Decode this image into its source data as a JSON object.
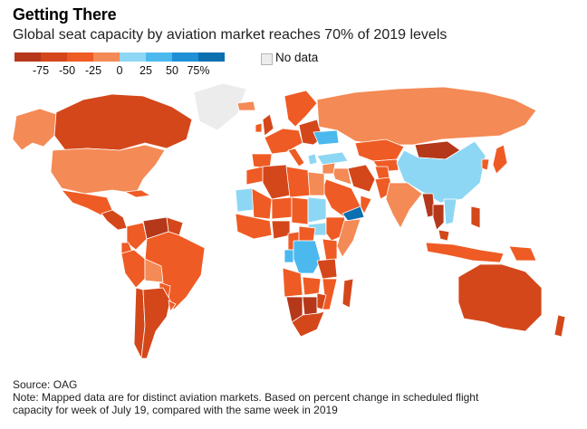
{
  "title": "Getting There",
  "subtitle": "Global seat capacity by aviation market reaches 70% of 2019 levels",
  "legend": {
    "colors": [
      "#b5381a",
      "#d4471b",
      "#ef5b24",
      "#f48a55",
      "#8ed7f4",
      "#4bb8ee",
      "#1f8fd6",
      "#0b6fb0"
    ],
    "ticks": [
      "-75",
      "-50",
      "-25",
      "0",
      "25",
      "50",
      "75%"
    ],
    "no_data_label": "No data",
    "no_data_color": "#ececec"
  },
  "map": {
    "ocean_color": "#ffffff",
    "border_color": "#ffffff",
    "regions": [
      {
        "name": "Alaska",
        "color": "#f48a55"
      },
      {
        "name": "Canada",
        "color": "#d4471b"
      },
      {
        "name": "Greenland",
        "color": "#ececec"
      },
      {
        "name": "United States",
        "color": "#f48a55"
      },
      {
        "name": "Mexico",
        "color": "#ef5b24"
      },
      {
        "name": "Central America",
        "color": "#d4471b"
      },
      {
        "name": "Cuba",
        "color": "#ef5b24"
      },
      {
        "name": "Colombia",
        "color": "#ef5b24"
      },
      {
        "name": "Venezuela",
        "color": "#b5381a"
      },
      {
        "name": "Guianas",
        "color": "#d4471b"
      },
      {
        "name": "Ecuador",
        "color": "#ef5b24"
      },
      {
        "name": "Peru",
        "color": "#ef5b24"
      },
      {
        "name": "Brazil",
        "color": "#ef5b24"
      },
      {
        "name": "Bolivia",
        "color": "#f48a55"
      },
      {
        "name": "Paraguay",
        "color": "#ef5b24"
      },
      {
        "name": "Chile",
        "color": "#d4471b"
      },
      {
        "name": "Argentina",
        "color": "#d4471b"
      },
      {
        "name": "Uruguay",
        "color": "#ef5b24"
      },
      {
        "name": "Iceland",
        "color": "#f48a55"
      },
      {
        "name": "United Kingdom",
        "color": "#d4471b"
      },
      {
        "name": "Ireland",
        "color": "#ef5b24"
      },
      {
        "name": "Scandinavia",
        "color": "#ef5b24"
      },
      {
        "name": "Western Europe",
        "color": "#ef5b24"
      },
      {
        "name": "Iberia",
        "color": "#ef5b24"
      },
      {
        "name": "Italy",
        "color": "#ef5b24"
      },
      {
        "name": "Eastern Europe",
        "color": "#d4471b"
      },
      {
        "name": "Ukraine",
        "color": "#4bb8ee"
      },
      {
        "name": "Greece",
        "color": "#8ed7f4"
      },
      {
        "name": "Turkey",
        "color": "#8ed7f4"
      },
      {
        "name": "Russia",
        "color": "#f48a55"
      },
      {
        "name": "Kazakhstan",
        "color": "#ef5b24"
      },
      {
        "name": "Central Asia",
        "color": "#ef5b24"
      },
      {
        "name": "Mongolia",
        "color": "#b5381a"
      },
      {
        "name": "China",
        "color": "#8ed7f4"
      },
      {
        "name": "Korea",
        "color": "#ef5b24"
      },
      {
        "name": "Japan",
        "color": "#ef5b24"
      },
      {
        "name": "Iran",
        "color": "#d4471b"
      },
      {
        "name": "Afghanistan",
        "color": "#ef5b24"
      },
      {
        "name": "Pakistan",
        "color": "#ef5b24"
      },
      {
        "name": "India",
        "color": "#f48a55"
      },
      {
        "name": "Myanmar",
        "color": "#b5381a"
      },
      {
        "name": "Thailand",
        "color": "#b5381a"
      },
      {
        "name": "Vietnam",
        "color": "#8ed7f4"
      },
      {
        "name": "Malaysia",
        "color": "#d4471b"
      },
      {
        "name": "Indonesia",
        "color": "#ef5b24"
      },
      {
        "name": "Philippines",
        "color": "#d4471b"
      },
      {
        "name": "Papua New Guinea",
        "color": "#ef5b24"
      },
      {
        "name": "Saudi Arabia",
        "color": "#ef5b24"
      },
      {
        "name": "Iraq",
        "color": "#f48a55"
      },
      {
        "name": "Syria",
        "color": "#f48a55"
      },
      {
        "name": "Yemen",
        "color": "#0b6fb0"
      },
      {
        "name": "Oman",
        "color": "#ef5b24"
      },
      {
        "name": "Morocco",
        "color": "#ef5b24"
      },
      {
        "name": "Algeria",
        "color": "#d4471b"
      },
      {
        "name": "Libya",
        "color": "#ef5b24"
      },
      {
        "name": "Egypt",
        "color": "#f48a55"
      },
      {
        "name": "Mauritania",
        "color": "#8ed7f4"
      },
      {
        "name": "Mali",
        "color": "#ef5b24"
      },
      {
        "name": "Niger",
        "color": "#ef5b24"
      },
      {
        "name": "Chad",
        "color": "#ef5b24"
      },
      {
        "name": "Sudan",
        "color": "#8ed7f4"
      },
      {
        "name": "South Sudan",
        "color": "#8ed7f4"
      },
      {
        "name": "Ethiopia",
        "color": "#ef5b24"
      },
      {
        "name": "Somalia",
        "color": "#f48a55"
      },
      {
        "name": "West Africa",
        "color": "#ef5b24"
      },
      {
        "name": "Nigeria",
        "color": "#d4471b"
      },
      {
        "name": "Cameroon",
        "color": "#ef5b24"
      },
      {
        "name": "Central African Republic",
        "color": "#ef5b24"
      },
      {
        "name": "Gabon",
        "color": "#4bb8ee"
      },
      {
        "name": "DR Congo",
        "color": "#4bb8ee"
      },
      {
        "name": "Kenya",
        "color": "#ef5b24"
      },
      {
        "name": "Tanzania",
        "color": "#d4471b"
      },
      {
        "name": "Angola",
        "color": "#ef5b24"
      },
      {
        "name": "Zambia",
        "color": "#ef5b24"
      },
      {
        "name": "Mozambique",
        "color": "#ef5b24"
      },
      {
        "name": "Namibia",
        "color": "#b5381a"
      },
      {
        "name": "Botswana",
        "color": "#b5381a"
      },
      {
        "name": "Zimbabwe",
        "color": "#d4471b"
      },
      {
        "name": "South Africa",
        "color": "#d4471b"
      },
      {
        "name": "Madagascar",
        "color": "#d4471b"
      },
      {
        "name": "Australia",
        "color": "#d4471b"
      },
      {
        "name": "New Zealand",
        "color": "#d4471b"
      }
    ]
  },
  "source": "Source: OAG",
  "note_lines": [
    "Note: Mapped data are for distinct aviation markets. Based on percent change in scheduled flight",
    "capacity for week of July 19, compared with the same week in 2019"
  ]
}
